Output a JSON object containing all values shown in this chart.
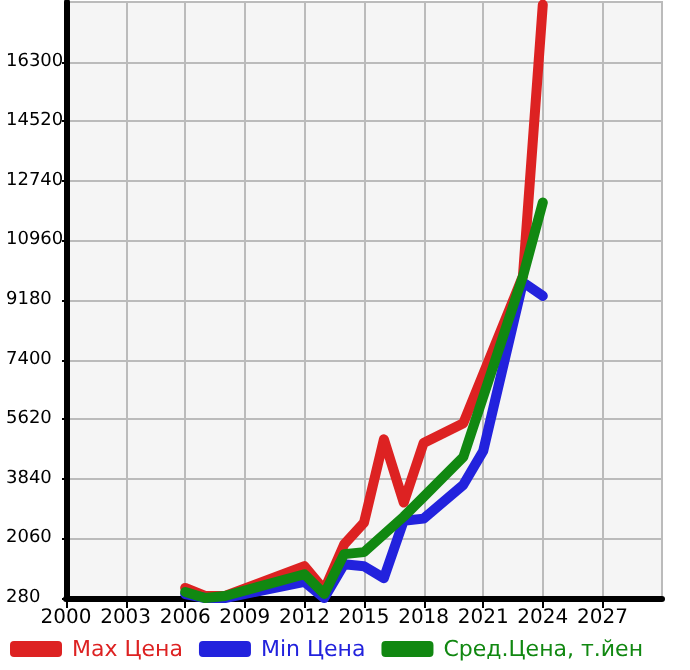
{
  "chart_data": {
    "type": "line",
    "series": [
      {
        "name": "Max Цена",
        "color": "#dd2222",
        "x": [
          2006,
          2007,
          2008,
          2012,
          2013,
          2014,
          2015,
          2016,
          2017,
          2018,
          2020,
          2023,
          2024
        ],
        "values": [
          580,
          340,
          340,
          1230,
          520,
          1880,
          2530,
          5020,
          3130,
          4910,
          5500,
          9890,
          18000
        ]
      },
      {
        "name": "Min Цена",
        "color": "#2222dd",
        "x": [
          2006,
          2007,
          2008,
          2012,
          2013,
          2014,
          2015,
          2016,
          2017,
          2018,
          2020,
          2021,
          2023,
          2024
        ],
        "values": [
          400,
          280,
          280,
          760,
          280,
          1290,
          1230,
          873,
          2590,
          2650,
          3660,
          4670,
          9710,
          9300
        ]
      },
      {
        "name": "Сред.Цена, т.йен",
        "color": "#118811",
        "x": [
          2006,
          2007,
          2008,
          2012,
          2013,
          2014,
          2015,
          2017,
          2018,
          2020,
          2023,
          2024
        ],
        "values": [
          460,
          280,
          340,
          990,
          400,
          1590,
          1650,
          2710,
          3300,
          4490,
          9890,
          12090
        ]
      }
    ],
    "xlim": [
      2000,
      2030
    ],
    "xticks": [
      2000,
      2003,
      2006,
      2009,
      2012,
      2015,
      2018,
      2021,
      2024,
      2027
    ],
    "ylim": [
      280,
      18080
    ],
    "yticks": [
      280,
      2060,
      3840,
      5620,
      7400,
      9180,
      10960,
      12740,
      14520,
      16300
    ],
    "grid": true,
    "legend": "bottom",
    "marker": "none",
    "line_style": "solid"
  }
}
